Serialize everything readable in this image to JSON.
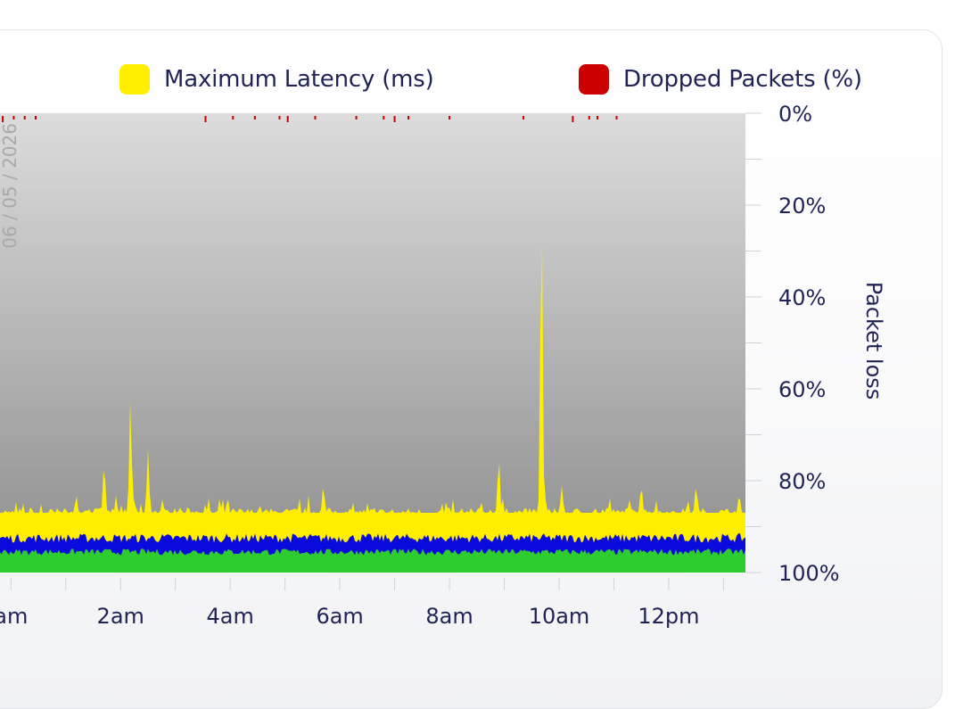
{
  "chart_data": {
    "type": "area",
    "title": "",
    "date_annotation": "06 / 05 / 2026",
    "xlabel": "",
    "x_ticks": [
      "am",
      "2am",
      "4am",
      "6am",
      "8am",
      "10am",
      "12pm"
    ],
    "x_range_hours": [
      -0.2,
      13.4
    ],
    "right_axis": {
      "label": "Packet loss",
      "ticks": [
        "0%",
        "20%",
        "40%",
        "60%",
        "80%",
        "100%"
      ],
      "reversed": true,
      "range_percent": [
        0,
        100
      ]
    },
    "grid": false,
    "legend": {
      "position": "top-right",
      "items": [
        {
          "name": "Maximum Latency (ms)",
          "color": "#ffee00"
        },
        {
          "name": "Dropped Packets (%)",
          "color": "#cc0000"
        }
      ]
    },
    "series": [
      {
        "name": "Maximum Latency (ms)",
        "color": "#ffee00",
        "baseline_level": 0.13,
        "spikes": [
          {
            "hour": 1.7,
            "level": 0.24
          },
          {
            "hour": 2.18,
            "level": 0.38
          },
          {
            "hour": 2.5,
            "level": 0.27
          },
          {
            "hour": 5.7,
            "level": 0.19
          },
          {
            "hour": 8.9,
            "level": 0.25
          },
          {
            "hour": 9.68,
            "level": 0.8
          },
          {
            "hour": 10.05,
            "level": 0.19
          },
          {
            "hour": 11.5,
            "level": 0.19
          },
          {
            "hour": 12.5,
            "level": 0.19
          }
        ]
      },
      {
        "color": "#0a0adc",
        "level": 0.075
      },
      {
        "color": "#2ecc2e",
        "level": 0.045
      }
    ],
    "dropped_packet_hours": [
      -0.15,
      0.05,
      0.25,
      0.45,
      3.55,
      4.05,
      4.45,
      4.9,
      5.05,
      5.55,
      6.3,
      6.8,
      7.0,
      7.25,
      8.0,
      9.35,
      10.25,
      10.55,
      10.7,
      11.05
    ]
  }
}
